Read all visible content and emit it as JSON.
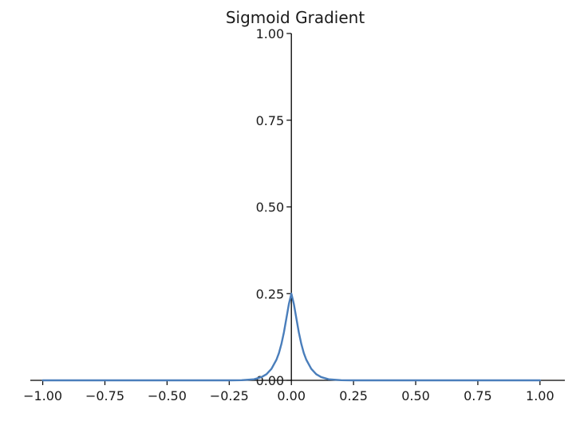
{
  "chart_data": {
    "type": "line",
    "title": "Sigmoid Gradient",
    "xlabel": "",
    "ylabel": "",
    "xlim": [
      -1.05,
      1.1
    ],
    "ylim": [
      0,
      1.0
    ],
    "x_ticks": [
      -1.0,
      -0.75,
      -0.5,
      -0.25,
      0.0,
      0.25,
      0.5,
      0.75,
      1.0
    ],
    "x_tick_labels": [
      "−1.00",
      "−0.75",
      "−0.50",
      "−0.25",
      "0.00",
      "0.25",
      "0.50",
      "0.75",
      "1.00"
    ],
    "y_ticks": [
      0.0,
      0.25,
      0.5,
      0.75,
      1.0
    ],
    "y_tick_labels": [
      "0.00",
      "0.25",
      "0.50",
      "0.75",
      "1.00"
    ],
    "grid": false,
    "spines": "centered at origin",
    "series": [
      {
        "color": "#4a7ebb",
        "x": [
          -1.0,
          -0.5,
          -0.25,
          -0.2,
          -0.15,
          -0.12,
          -0.1,
          -0.08,
          -0.06,
          -0.05,
          -0.04,
          -0.03,
          -0.02,
          -0.01,
          0.0,
          0.01,
          0.02,
          0.03,
          0.04,
          0.05,
          0.06,
          0.08,
          0.1,
          0.12,
          0.15,
          0.2,
          0.25,
          0.5,
          1.0
        ],
        "y": [
          0.0,
          0.0,
          0.0,
          0.0005,
          0.003,
          0.0093,
          0.0177,
          0.0332,
          0.0595,
          0.0786,
          0.105,
          0.1382,
          0.179,
          0.22,
          0.25,
          0.22,
          0.179,
          0.1382,
          0.105,
          0.0786,
          0.0595,
          0.0332,
          0.0177,
          0.0093,
          0.003,
          0.0005,
          0.0,
          0.0,
          0.0
        ]
      }
    ]
  }
}
